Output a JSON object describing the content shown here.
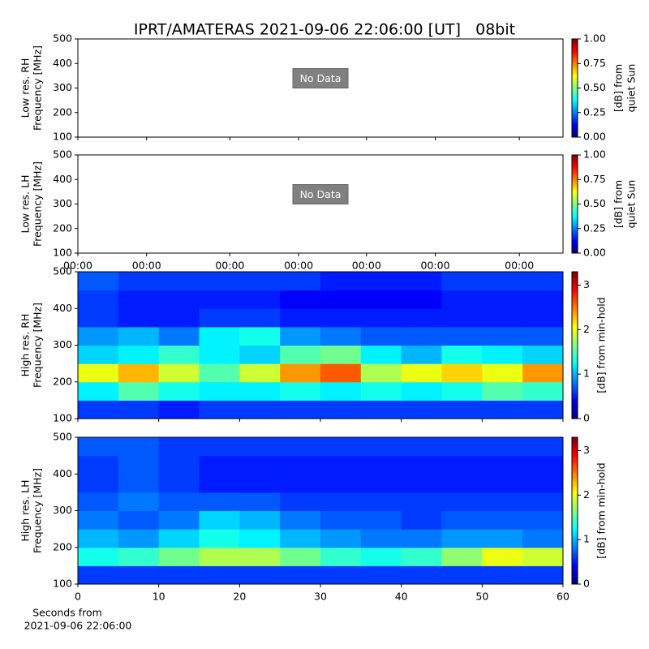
{
  "title": "IPRT/AMATERAS 2021-09-06 22:06:00 [UT]   08bit",
  "chart_data": [
    {
      "type": "heatmap",
      "ylabel": [
        "Low res. RH",
        "Frequency [MHz]"
      ],
      "annotation": "No Data",
      "xlim": [
        0,
        60
      ],
      "xticks": [
        0,
        8.5,
        18.8,
        27.3,
        35.7,
        44.2,
        54.6
      ],
      "ylim": [
        100,
        500
      ],
      "yticks": [
        100,
        200,
        300,
        400,
        500
      ],
      "clim": [
        0,
        1
      ],
      "colormap": "jet",
      "colorbar_label": [
        "[dB] from",
        "quiet Sun"
      ],
      "cticks": [
        {
          "value": 0,
          "label": "0.00"
        },
        {
          "value": 0.25,
          "label": "0.25"
        },
        {
          "value": 0.5,
          "label": "0.50"
        },
        {
          "value": 0.75,
          "label": "0.75"
        },
        {
          "value": 1,
          "label": "1.00"
        }
      ]
    },
    {
      "type": "heatmap",
      "ylabel": [
        "Low res. LH",
        "Frequency [MHz]"
      ],
      "annotation": "No Data",
      "xlim": [
        0,
        60
      ],
      "xticks": [
        {
          "value": 0,
          "label": "00:00"
        },
        {
          "value": 8.5,
          "label": "00:00"
        },
        {
          "value": 18.8,
          "label": "00:00"
        },
        {
          "value": 27.3,
          "label": "00:00"
        },
        {
          "value": 35.7,
          "label": "00:00"
        },
        {
          "value": 44.2,
          "label": "00:00"
        },
        {
          "value": 54.6,
          "label": "00:00"
        }
      ],
      "ylim": [
        100,
        500
      ],
      "yticks": [
        100,
        200,
        300,
        400,
        500
      ],
      "clim": [
        0,
        1
      ],
      "colormap": "jet",
      "colorbar_label": [
        "[dB] from",
        "quiet Sun"
      ],
      "cticks": [
        {
          "value": 0,
          "label": "0.00"
        },
        {
          "value": 0.25,
          "label": "0.25"
        },
        {
          "value": 0.5,
          "label": "0.50"
        },
        {
          "value": 0.75,
          "label": "0.75"
        },
        {
          "value": 1,
          "label": "1.00"
        }
      ]
    },
    {
      "type": "heatmap",
      "ylabel": [
        "High res. RH",
        "Frequency [MHz]"
      ],
      "xlim": [
        0,
        60
      ],
      "xticks": [
        0,
        10,
        20,
        30,
        40,
        50,
        60
      ],
      "ylim": [
        100,
        500
      ],
      "yticks": [
        100,
        200,
        300,
        400,
        500
      ],
      "clim": [
        0,
        3.3
      ],
      "colormap": "jet",
      "colorbar_label": [
        "[dB] from min-hold"
      ],
      "cticks": [
        0,
        1,
        2,
        3
      ],
      "z": [
        [
          0.6,
          0.6,
          0.5,
          0.6,
          0.6,
          0.6,
          0.6,
          0.6,
          0.6,
          0.6,
          0.6,
          0.6
        ],
        [
          1.2,
          1.5,
          1.3,
          1.2,
          1.2,
          1.3,
          1.2,
          1.3,
          1.2,
          1.3,
          1.5,
          1.4
        ],
        [
          2.0,
          2.3,
          1.9,
          1.5,
          1.9,
          2.4,
          2.6,
          1.8,
          2.0,
          2.2,
          2.0,
          2.4
        ],
        [
          1.1,
          1.2,
          1.4,
          1.2,
          1.1,
          1.5,
          1.6,
          1.2,
          1.0,
          1.3,
          1.2,
          1.1
        ],
        [
          0.9,
          1.0,
          0.8,
          1.2,
          1.3,
          0.9,
          0.8,
          0.7,
          0.7,
          0.7,
          0.7,
          0.7
        ],
        [
          0.6,
          0.5,
          0.5,
          0.6,
          0.6,
          0.5,
          0.5,
          0.5,
          0.5,
          0.5,
          0.5,
          0.5
        ],
        [
          0.6,
          0.5,
          0.5,
          0.5,
          0.5,
          0.4,
          0.4,
          0.4,
          0.4,
          0.5,
          0.5,
          0.5
        ],
        [
          0.7,
          0.6,
          0.6,
          0.6,
          0.6,
          0.6,
          0.5,
          0.5,
          0.5,
          0.6,
          0.6,
          0.6
        ]
      ]
    },
    {
      "type": "heatmap",
      "ylabel": [
        "High res. LH",
        "Frequency [MHz]"
      ],
      "xlabel": [
        "Seconds from",
        "2021-09-06 22:06:00"
      ],
      "xlim": [
        0,
        60
      ],
      "xticks": [
        0,
        10,
        20,
        30,
        40,
        50,
        60
      ],
      "ylim": [
        100,
        500
      ],
      "yticks": [
        100,
        200,
        300,
        400,
        500
      ],
      "clim": [
        0,
        3.3
      ],
      "colormap": "jet",
      "colorbar_label": [
        "[dB] from min-hold"
      ],
      "cticks": [
        0,
        1,
        2,
        3
      ],
      "z": [
        [
          0.6,
          0.6,
          0.6,
          0.6,
          0.6,
          0.6,
          0.6,
          0.6,
          0.6,
          0.6,
          0.6,
          0.6
        ],
        [
          1.3,
          1.4,
          1.6,
          1.8,
          1.8,
          1.6,
          1.4,
          1.3,
          1.4,
          1.7,
          2.0,
          1.9
        ],
        [
          1.0,
          0.9,
          1.1,
          1.3,
          1.2,
          1.0,
          0.9,
          0.8,
          0.8,
          0.9,
          0.9,
          0.8
        ],
        [
          0.8,
          0.7,
          0.8,
          1.1,
          1.0,
          0.8,
          0.7,
          0.7,
          0.6,
          0.7,
          0.7,
          0.7
        ],
        [
          0.7,
          0.8,
          0.7,
          0.7,
          0.7,
          0.6,
          0.6,
          0.6,
          0.6,
          0.6,
          0.6,
          0.6
        ],
        [
          0.6,
          0.7,
          0.6,
          0.5,
          0.5,
          0.5,
          0.5,
          0.5,
          0.5,
          0.5,
          0.5,
          0.5
        ],
        [
          0.6,
          0.7,
          0.6,
          0.5,
          0.5,
          0.5,
          0.5,
          0.5,
          0.5,
          0.5,
          0.5,
          0.5
        ],
        [
          0.7,
          0.7,
          0.6,
          0.6,
          0.6,
          0.6,
          0.6,
          0.6,
          0.6,
          0.6,
          0.6,
          0.6
        ]
      ]
    }
  ]
}
